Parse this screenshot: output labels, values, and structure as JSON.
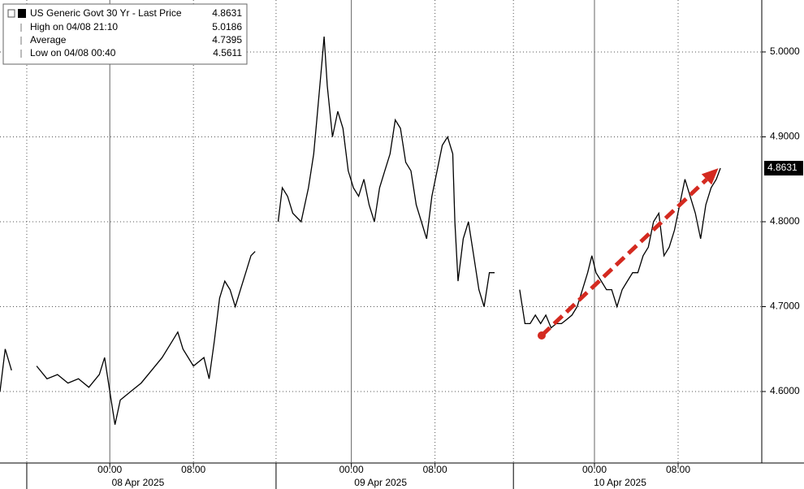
{
  "chart_data": {
    "type": "line",
    "x": [
      0,
      0.5,
      1.1,
      2,
      3.5,
      4.5,
      5.5,
      6.5,
      7.5,
      8.5,
      9.5,
      10.0,
      10.5,
      11.0,
      11.5,
      12.5,
      13.5,
      14.5,
      15.5,
      16.5,
      17.0,
      17.5,
      18.5,
      19.5,
      20.0,
      20.5,
      21.0,
      21.5,
      22.0,
      22.5,
      23.0,
      23.5,
      24.0,
      24.4,
      25,
      26.6,
      27.0,
      27.5,
      28.0,
      28.8,
      29.5,
      30.0,
      30.3,
      30.8,
      31.0,
      31.3,
      31.8,
      32.3,
      32.8,
      33.3,
      33.8,
      34.3,
      34.8,
      35.3,
      35.8,
      36.3,
      36.8,
      37.3,
      37.8,
      38.3,
      38.8,
      39.3,
      39.8,
      40.3,
      40.8,
      41.3,
      41.8,
      42.3,
      42.8,
      43.3,
      43.5,
      43.8,
      44.3,
      44.8,
      45.3,
      45.8,
      46.3,
      46.8,
      47.3,
      48,
      49.7,
      50.2,
      50.7,
      51.2,
      51.7,
      52.2,
      52.7,
      53.2,
      53.7,
      54.2,
      54.7,
      55.2,
      55.7,
      56.2,
      56.6,
      57.0,
      57.5,
      58.0,
      58.5,
      59.0,
      59.5,
      60.0,
      60.5,
      61.0,
      61.5,
      62.0,
      62.5,
      63.0,
      63.5,
      64.0,
      64.5,
      65.0,
      65.5,
      66.0,
      66.5,
      67.0,
      67.5,
      68.0,
      68.5,
      68.9
    ],
    "series": [
      {
        "name": "US Generic Govt 30 Yr - Last Price",
        "color": "#000000",
        "last": 4.8631,
        "values": [
          4.6,
          4.65,
          4.625,
          null,
          4.63,
          4.615,
          4.62,
          4.61,
          4.615,
          4.605,
          4.62,
          4.64,
          4.6,
          4.561,
          4.59,
          4.6,
          4.61,
          4.625,
          4.64,
          4.66,
          4.67,
          4.65,
          4.63,
          4.64,
          4.615,
          4.66,
          4.71,
          4.73,
          4.72,
          4.7,
          4.72,
          4.74,
          4.76,
          4.765,
          null,
          4.8,
          4.84,
          4.83,
          4.81,
          4.8,
          4.84,
          4.88,
          4.92,
          4.99,
          5.018,
          4.96,
          4.9,
          4.93,
          4.91,
          4.86,
          4.84,
          4.83,
          4.85,
          4.82,
          4.8,
          4.84,
          4.86,
          4.88,
          4.92,
          4.91,
          4.87,
          4.86,
          4.82,
          4.8,
          4.78,
          4.83,
          4.86,
          4.89,
          4.9,
          4.88,
          4.8,
          4.73,
          4.78,
          4.8,
          4.76,
          4.72,
          4.7,
          4.74,
          4.74,
          null,
          4.72,
          4.68,
          4.68,
          4.69,
          4.68,
          4.69,
          4.675,
          4.68,
          4.68,
          4.685,
          4.69,
          4.7,
          4.72,
          4.74,
          4.76,
          4.74,
          4.73,
          4.72,
          4.72,
          4.7,
          4.72,
          4.73,
          4.74,
          4.74,
          4.76,
          4.77,
          4.8,
          4.81,
          4.76,
          4.77,
          4.79,
          4.82,
          4.85,
          4.83,
          4.81,
          4.78,
          4.82,
          4.84,
          4.85,
          4.8631
        ]
      }
    ],
    "legend_stats": [
      {
        "label": "High on 04/08 21:10",
        "value": 5.0186
      },
      {
        "label": "Average",
        "value": 4.7395
      },
      {
        "label": "Low on 04/08 00:40",
        "value": 4.5611
      }
    ],
    "xlim": [
      0,
      72.85
    ],
    "ylim": [
      4.5158,
      5.0612
    ],
    "yticks": [
      {
        "value": 4.6,
        "label": "4.6000"
      },
      {
        "value": 4.7,
        "label": "4.7000"
      },
      {
        "value": 4.8,
        "label": "4.8000"
      },
      {
        "value": 4.9,
        "label": "4.9000"
      },
      {
        "value": 5.0,
        "label": "5.0000"
      }
    ],
    "xticks": [
      {
        "value": 10.5,
        "label": "00:00"
      },
      {
        "value": 18.5,
        "label": "08:00"
      },
      {
        "value": 33.6,
        "label": "00:00"
      },
      {
        "value": 41.6,
        "label": "08:00"
      },
      {
        "value": 56.85,
        "label": "00:00"
      },
      {
        "value": 64.85,
        "label": "08:00"
      }
    ],
    "day_labels": [
      {
        "value": 13.2,
        "label": "08 Apr 2025"
      },
      {
        "value": 36.4,
        "label": "09 Apr 2025"
      },
      {
        "value": 59.3,
        "label": "10 Apr 2025"
      }
    ],
    "separators": [
      2.56,
      26.4,
      49.1
    ],
    "annotation": {
      "from": [
        51.8,
        4.666
      ],
      "to": [
        68.7,
        4.863
      ],
      "color": "#d42a20"
    },
    "grid": true
  }
}
